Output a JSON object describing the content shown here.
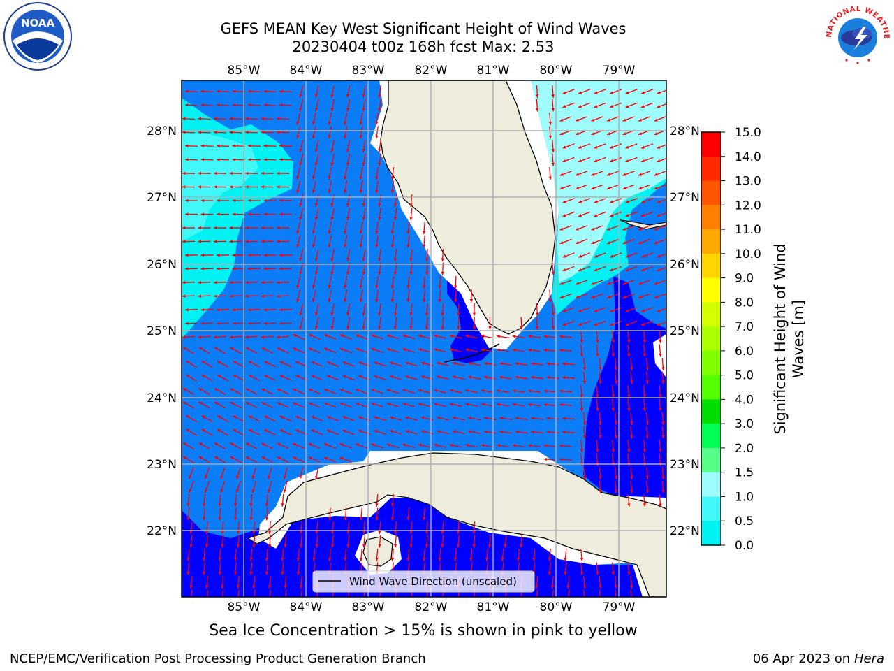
{
  "title": {
    "line1": "GEFS MEAN Key West Significant Height of Wind Waves",
    "line2": "20230404 t00z 168h fcst   Max: 2.53"
  },
  "logos": {
    "left": "noaa-logo",
    "right": "national-weather-service-logo",
    "noaa_text": "NOAA",
    "nws_text": "NATIONAL WEATHER SERVICE"
  },
  "map": {
    "lon_labels": [
      "85°W",
      "84°W",
      "83°W",
      "82°W",
      "81°W",
      "80°W",
      "79°W"
    ],
    "lat_labels": [
      "28°N",
      "27°N",
      "26°N",
      "25°N",
      "24°N",
      "23°N",
      "22°N"
    ],
    "legend_text": "Wind Wave Direction (unscaled)",
    "colors": {
      "land": "#eeecdc",
      "band_0_0_5": "#0000ff",
      "band_0_5_1_0": "#0a7df7",
      "band_1_0_1_5": "#00f2f2",
      "band_1_5_2_0": "#40f8f8",
      "band_2_0_3_0": "#9efcfc",
      "arrow": "#ff0000"
    }
  },
  "colorbar": {
    "label_line1": "Significant Height of Wind",
    "label_line2": "Waves [m]",
    "ticks": [
      "15.0",
      "14.0",
      "13.0",
      "12.0",
      "11.0",
      "10.0",
      "9.0",
      "8.0",
      "7.0",
      "6.0",
      "5.0",
      "4.0",
      "3.0",
      "2.0",
      "1.5",
      "1.0",
      "0.5",
      "0.0"
    ],
    "colors": [
      "#ff0000",
      "#ff2a00",
      "#ff5500",
      "#ff8000",
      "#ffaa00",
      "#ffd400",
      "#ffff00",
      "#d4ff00",
      "#aaff00",
      "#80ff00",
      "#55ff00",
      "#00dd00",
      "#00ff55",
      "#55ff88",
      "#9efcfc",
      "#40f8f8",
      "#00f2f2",
      "#0a7df7",
      "#0000ff"
    ]
  },
  "footer": {
    "ice_note": "Sea Ice Concentration > 15% is shown in pink to yellow",
    "credit": "NCEP/EMC/Verification Post Processing Product Generation Branch",
    "date": "06 Apr 2023 on",
    "machine": "Hera"
  }
}
